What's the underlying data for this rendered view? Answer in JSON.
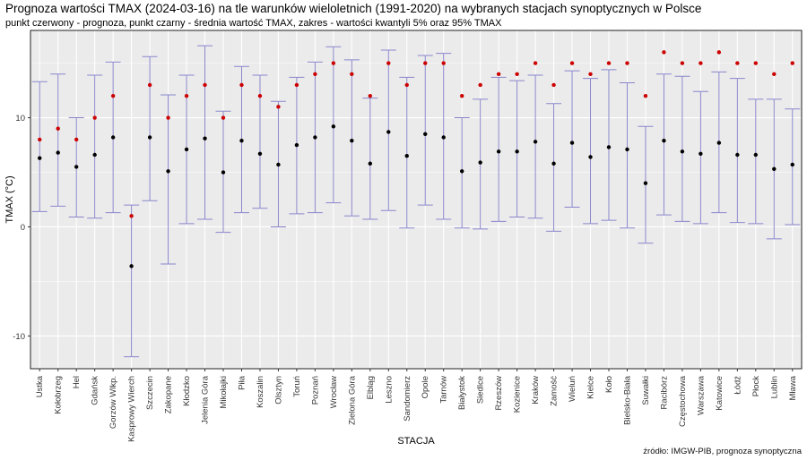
{
  "title": "Prognoza wartości TMAX (2024-03-16) na tle warunków wieloletnich (1991-2020) na wybranych stacjach synoptycznych w Polsce",
  "subtitle": "punkt czerwony - prognoza, punkt czarny - średnia wartość TMAX, zakres - wartości kwantyli 5% oraz 95% TMAX",
  "source": "źródło: IMGW-PIB, prognoza synoptyczna",
  "colors": {
    "forecast": "#cc0000",
    "mean": "#000000",
    "range": "#8a86cc",
    "panel": "#ebebeb",
    "grid": "#ffffff"
  },
  "chart_data": {
    "type": "scatter",
    "xlabel": "STACJA",
    "ylabel": "TMAX (°C)",
    "ylim": [
      -13,
      18
    ],
    "yticks": [
      -10,
      0,
      10
    ],
    "grid": true,
    "categories": [
      "Ustka",
      "Kołobrzeg",
      "Hel",
      "Gdańsk",
      "Gorzów Wlkp.",
      "Kasprowy Wierch",
      "Szczecin",
      "Zakopane",
      "Kłodzko",
      "Jelenia Góra",
      "Mikołajki",
      "Piła",
      "Koszalin",
      "Olsztyn",
      "Toruń",
      "Poznań",
      "Wrocław",
      "Zielona Góra",
      "Elbląg",
      "Leszno",
      "Sandomierz",
      "Opole",
      "Tarnów",
      "Białystok",
      "Siedlce",
      "Rzeszów",
      "Kozienice",
      "Kraków",
      "Zamość",
      "Wieluń",
      "Kielce",
      "Koło",
      "Bielsko-Biała",
      "Suwałki",
      "Racibórz",
      "Częstochowa",
      "Warszawa",
      "Katowice",
      "Łódź",
      "Płock",
      "Lublin",
      "Mława"
    ],
    "series": [
      {
        "name": "prognoza",
        "values": [
          8,
          9,
          8,
          10,
          12,
          1,
          13,
          10,
          12,
          13,
          10,
          13,
          12,
          11,
          13,
          14,
          15,
          14,
          12,
          15,
          13,
          15,
          15,
          12,
          13,
          14,
          14,
          15,
          13,
          15,
          14,
          15,
          15,
          12,
          16,
          15,
          15,
          16,
          15,
          15,
          14,
          15
        ]
      },
      {
        "name": "średnia",
        "values": [
          6.3,
          6.8,
          5.5,
          6.6,
          8.2,
          -3.6,
          8.2,
          5.1,
          7.1,
          8.1,
          5.0,
          7.9,
          6.7,
          5.7,
          7.5,
          8.2,
          9.2,
          7.9,
          5.8,
          8.7,
          6.5,
          8.5,
          8.2,
          5.1,
          5.9,
          6.9,
          6.9,
          7.8,
          5.8,
          7.7,
          6.4,
          7.3,
          7.1,
          4.0,
          7.9,
          6.9,
          6.7,
          7.7,
          6.6,
          6.6,
          5.3,
          5.7
        ]
      },
      {
        "name": "q05",
        "values": [
          1.4,
          1.9,
          0.9,
          0.8,
          1.3,
          -11.9,
          2.4,
          -3.4,
          0.3,
          0.7,
          -0.5,
          1.3,
          1.7,
          0.0,
          1.2,
          1.3,
          2.2,
          1.0,
          0.7,
          1.5,
          -0.1,
          2.0,
          0.7,
          -0.1,
          -0.2,
          0.5,
          0.9,
          0.8,
          -0.4,
          1.8,
          0.3,
          0.6,
          -0.1,
          -1.5,
          1.1,
          0.5,
          0.3,
          1.3,
          0.4,
          0.3,
          -1.1,
          0.2
        ]
      },
      {
        "name": "q95",
        "values": [
          13.3,
          14.0,
          10.0,
          13.9,
          15.1,
          2.0,
          15.6,
          12.1,
          13.9,
          16.6,
          10.6,
          14.7,
          13.9,
          11.5,
          13.7,
          15.1,
          16.5,
          15.3,
          11.8,
          16.2,
          13.7,
          15.7,
          15.9,
          10.0,
          11.7,
          13.7,
          13.4,
          13.9,
          11.3,
          14.3,
          13.6,
          14.4,
          13.2,
          9.2,
          14.0,
          13.8,
          12.4,
          14.2,
          13.6,
          11.7,
          11.7,
          10.8
        ]
      }
    ]
  }
}
